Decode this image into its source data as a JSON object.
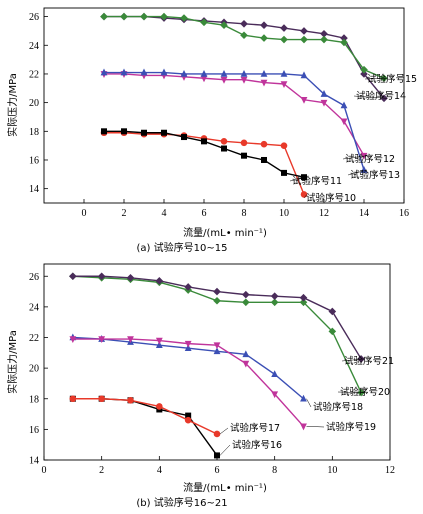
{
  "chart_data": [
    {
      "type": "line",
      "caption": "(a)  试验序号10~15",
      "xlabel": "流量/(mL• min⁻¹)",
      "ylabel": "实际压力/MPa",
      "xlim": [
        -2,
        16
      ],
      "ylim": [
        13,
        26.6
      ],
      "xticks": [
        0,
        2,
        4,
        6,
        8,
        10,
        12,
        14,
        16
      ],
      "yticks": [
        14,
        16,
        18,
        20,
        22,
        24,
        26
      ],
      "grid": false,
      "series": [
        {
          "name": "试验序号10",
          "color": "#e8392a",
          "marker": "circle",
          "x": [
            1,
            2,
            3,
            4,
            5,
            6,
            7,
            8,
            9,
            10,
            11
          ],
          "y": [
            17.9,
            17.9,
            17.8,
            17.8,
            17.7,
            17.5,
            17.3,
            17.2,
            17.1,
            17.0,
            13.6
          ]
        },
        {
          "name": "试验序号11",
          "color": "#000000",
          "marker": "square",
          "x": [
            1,
            2,
            3,
            4,
            5,
            6,
            7,
            8,
            9,
            10,
            11
          ],
          "y": [
            18.0,
            18.0,
            17.9,
            17.9,
            17.6,
            17.3,
            16.8,
            16.3,
            16.0,
            15.1,
            14.8
          ]
        },
        {
          "name": "试验序号12",
          "color": "#c0349b",
          "marker": "triangle-down",
          "x": [
            1,
            2,
            3,
            4,
            5,
            6,
            7,
            8,
            9,
            10,
            11,
            12,
            13,
            14
          ],
          "y": [
            22.0,
            22.0,
            21.9,
            21.9,
            21.8,
            21.7,
            21.6,
            21.6,
            21.4,
            21.3,
            20.2,
            20.0,
            18.7,
            16.3
          ]
        },
        {
          "name": "试验序号13",
          "color": "#3b4fb5",
          "marker": "triangle-up",
          "x": [
            1,
            2,
            3,
            4,
            5,
            6,
            7,
            8,
            9,
            10,
            11,
            12,
            13,
            14
          ],
          "y": [
            22.1,
            22.1,
            22.1,
            22.1,
            22.0,
            22.0,
            22.0,
            22.0,
            22.0,
            22.0,
            21.9,
            20.6,
            19.8,
            15.3
          ]
        },
        {
          "name": "试验序号14",
          "color": "#4a2c5a",
          "marker": "diamond",
          "x": [
            1,
            2,
            3,
            4,
            5,
            6,
            7,
            8,
            9,
            10,
            11,
            12,
            13,
            14,
            15
          ],
          "y": [
            26.0,
            26.0,
            26.0,
            25.9,
            25.8,
            25.7,
            25.6,
            25.5,
            25.4,
            25.2,
            25.0,
            24.8,
            24.5,
            22.0,
            20.3
          ]
        },
        {
          "name": "试验序号15",
          "color": "#3a8a3a",
          "marker": "diamond",
          "x": [
            1,
            2,
            3,
            4,
            5,
            6,
            7,
            8,
            9,
            10,
            11,
            12,
            13,
            14,
            15
          ],
          "y": [
            26.0,
            26.0,
            26.0,
            26.0,
            25.9,
            25.6,
            25.4,
            24.7,
            24.5,
            24.4,
            24.4,
            24.4,
            24.2,
            22.3,
            21.7
          ]
        }
      ],
      "legend": "inline-right"
    },
    {
      "type": "line",
      "caption": "(b)  试验序号16~21",
      "xlabel": "流量/(mL• min⁻¹)",
      "ylabel": "实际压力/MPa",
      "xlim": [
        0,
        12
      ],
      "ylim": [
        14,
        26.8
      ],
      "xticks": [
        0,
        2,
        4,
        6,
        8,
        10,
        12
      ],
      "yticks": [
        14,
        16,
        18,
        20,
        22,
        24,
        26
      ],
      "grid": false,
      "series": [
        {
          "name": "试验序号16",
          "color": "#000000",
          "marker": "square",
          "x": [
            1,
            2,
            3,
            4,
            5,
            6
          ],
          "y": [
            18.0,
            18.0,
            17.9,
            17.3,
            16.9,
            14.3
          ]
        },
        {
          "name": "试验序号17",
          "color": "#e8392a",
          "marker": "circle",
          "x": [
            1,
            2,
            3,
            4,
            5,
            6
          ],
          "y": [
            18.0,
            18.0,
            17.9,
            17.5,
            16.6,
            15.7
          ]
        },
        {
          "name": "试验序号18",
          "color": "#3b4fb5",
          "marker": "triangle-up",
          "x": [
            1,
            2,
            3,
            4,
            5,
            6,
            7,
            8,
            9
          ],
          "y": [
            22.0,
            21.9,
            21.7,
            21.5,
            21.3,
            21.1,
            20.9,
            19.6,
            18.0
          ]
        },
        {
          "name": "试验序号19",
          "color": "#c0349b",
          "marker": "triangle-down",
          "x": [
            1,
            2,
            3,
            4,
            5,
            6,
            7,
            8,
            9
          ],
          "y": [
            21.9,
            21.9,
            21.9,
            21.8,
            21.6,
            21.5,
            20.3,
            18.3,
            16.2
          ]
        },
        {
          "name": "试验序号20",
          "color": "#3a8a3a",
          "marker": "diamond",
          "x": [
            1,
            2,
            3,
            4,
            5,
            6,
            7,
            8,
            9,
            10,
            11
          ],
          "y": [
            26.0,
            25.9,
            25.8,
            25.6,
            25.1,
            24.4,
            24.3,
            24.3,
            24.3,
            22.4,
            18.4
          ]
        },
        {
          "name": "试验序号21",
          "color": "#4a2c5a",
          "marker": "diamond",
          "x": [
            1,
            2,
            3,
            4,
            5,
            6,
            7,
            8,
            9,
            10,
            11
          ],
          "y": [
            26.0,
            26.0,
            25.9,
            25.7,
            25.3,
            25.0,
            24.8,
            24.7,
            24.6,
            23.7,
            20.6
          ]
        }
      ],
      "legend": "inline-right"
    }
  ]
}
